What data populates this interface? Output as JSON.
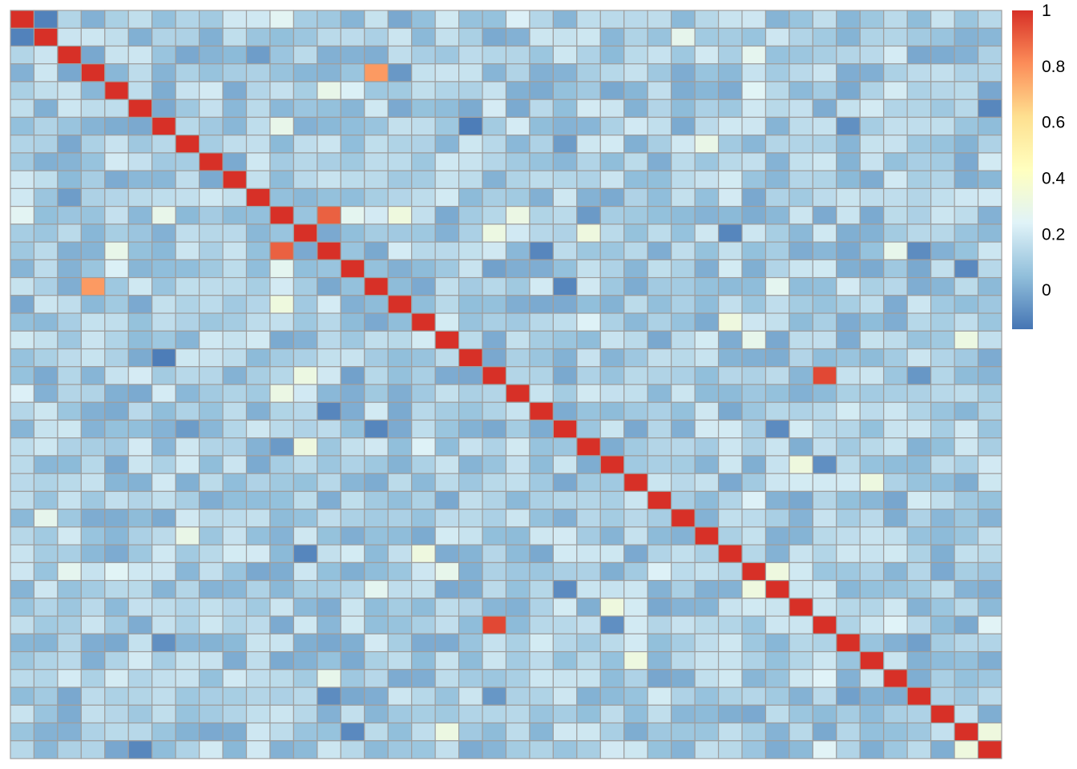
{
  "chart_data": {
    "type": "heatmap",
    "rows": 42,
    "cols": 42,
    "diagonal_value": 1,
    "background_value": 0.1,
    "offdiagonal_range": [
      -0.12,
      0.35
    ],
    "seed": 12345,
    "highlights": [
      {
        "row": 3,
        "col": 15,
        "value": 0.78
      },
      {
        "row": 15,
        "col": 3,
        "value": 0.78
      },
      {
        "row": 11,
        "col": 13,
        "value": 0.9
      },
      {
        "row": 13,
        "col": 11,
        "value": 0.9
      },
      {
        "row": 20,
        "col": 34,
        "value": 0.95
      },
      {
        "row": 34,
        "col": 20,
        "value": 0.95
      },
      {
        "row": 3,
        "col": 16,
        "value": -0.05
      },
      {
        "row": 6,
        "col": 19,
        "value": -0.12
      },
      {
        "row": 19,
        "col": 6,
        "value": -0.12
      },
      {
        "row": 26,
        "col": 36,
        "value": 0.32
      },
      {
        "row": 36,
        "col": 26,
        "value": 0.32
      }
    ],
    "legend": {
      "ticks": [
        {
          "value": 1,
          "label": "1"
        },
        {
          "value": 0.8,
          "label": "0.8"
        },
        {
          "value": 0.6,
          "label": "0.6"
        },
        {
          "value": 0.4,
          "label": "0.4"
        },
        {
          "value": 0.2,
          "label": "0.2"
        },
        {
          "value": 0,
          "label": "0"
        }
      ],
      "min": -0.14,
      "max": 1
    },
    "colors": {
      "palette": [
        "#4575B4",
        "#91BFDB",
        "#E0F3F8",
        "#FFFFBF",
        "#FEE090",
        "#FC8D59",
        "#D73027"
      ],
      "cell_border": "#9E9E9E"
    }
  }
}
